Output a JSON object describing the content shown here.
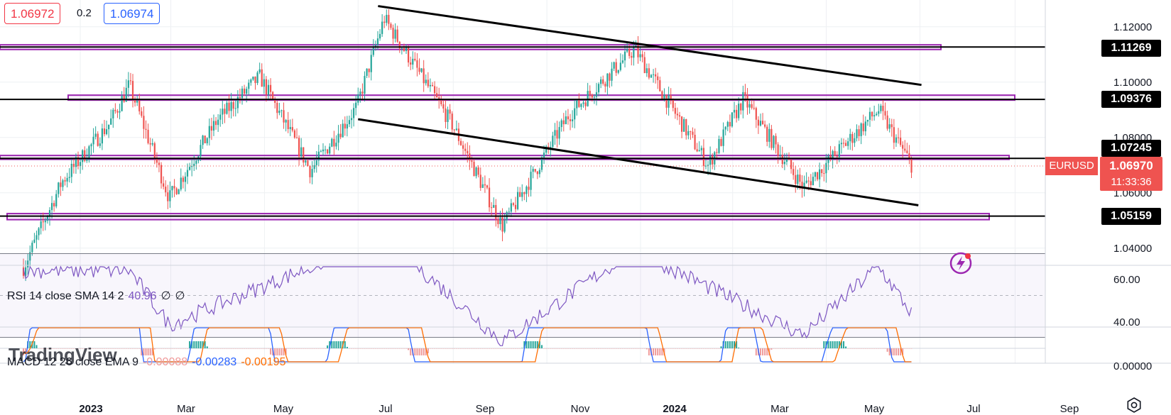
{
  "header": {
    "sell_price": "1.06972",
    "spread": "0.2",
    "buy_price": "1.06974"
  },
  "symbol": "EURUSD",
  "last_price": "1.06970",
  "countdown": "11:33:36",
  "watermark": "TradingView",
  "icons": [
    "alert-icon",
    "settings-icon"
  ],
  "colors": {
    "bull": "#26a69a",
    "bear": "#ef5350",
    "zone": "#9c27b0",
    "rsi": "#7e57c2",
    "macd": "#2962ff",
    "signal": "#ff6d00"
  },
  "rsi_legend": {
    "label": "RSI 14 close SMA 14 2",
    "value": "40.96",
    "extra1": "∅",
    "extra2": "∅"
  },
  "macd_legend": {
    "label": "MACD 12 26 close EMA 9",
    "hist": "-0.00088",
    "macd": "-0.00283",
    "signal": "-0.00195"
  },
  "chart_data": {
    "type": "candlestick",
    "price_axis_ticks": [
      "1.12000",
      "1.10000",
      "1.08000",
      "1.06000",
      "1.04000"
    ],
    "rsi_axis_ticks": [
      "60.00",
      "40.00"
    ],
    "macd_axis_ticks": [
      "0.00000"
    ],
    "x_labels": [
      "2023",
      "Mar",
      "May",
      "Jul",
      "Sep",
      "Nov",
      "2024",
      "Mar",
      "May",
      "Jul",
      "Sep"
    ],
    "horizontal_levels": [
      {
        "label": "1.11269",
        "value": 1.11269
      },
      {
        "label": "1.09376",
        "value": 1.09376
      },
      {
        "label": "1.07245",
        "value": 1.07245
      },
      {
        "label": "1.05159",
        "value": 1.05159
      }
    ],
    "trendlines": [
      {
        "from": {
          "date": "2023-07-14",
          "value": 1.1275
        },
        "to": {
          "date": "2024-07-02",
          "value": 1.099
        }
      },
      {
        "from": {
          "date": "2023-07-01",
          "value": 1.0866
        },
        "to": {
          "date": "2024-06-30",
          "value": 1.0555
        }
      }
    ],
    "ohlc_keypoints": [
      {
        "date": "2022-11-25",
        "close": 1.033
      },
      {
        "date": "2022-12-20",
        "close": 1.064
      },
      {
        "date": "2023-01-20",
        "close": 1.085
      },
      {
        "date": "2023-02-02",
        "close": 1.099
      },
      {
        "date": "2023-02-28",
        "close": 1.058
      },
      {
        "date": "2023-03-31",
        "close": 1.086
      },
      {
        "date": "2023-04-28",
        "close": 1.102
      },
      {
        "date": "2023-05-31",
        "close": 1.068
      },
      {
        "date": "2023-06-30",
        "close": 1.091
      },
      {
        "date": "2023-07-18",
        "close": 1.123
      },
      {
        "date": "2023-08-31",
        "close": 1.085
      },
      {
        "date": "2023-10-03",
        "close": 1.048
      },
      {
        "date": "2023-11-15",
        "close": 1.088
      },
      {
        "date": "2023-12-28",
        "close": 1.112
      },
      {
        "date": "2024-02-14",
        "close": 1.07
      },
      {
        "date": "2024-03-08",
        "close": 1.094
      },
      {
        "date": "2024-04-16",
        "close": 1.062
      },
      {
        "date": "2024-06-04",
        "close": 1.09
      },
      {
        "date": "2024-06-26",
        "close": 1.0697
      }
    ],
    "rsi_keypoints": [
      {
        "date": "2023-02-02",
        "value": 62
      },
      {
        "date": "2023-02-28",
        "value": 36
      },
      {
        "date": "2023-07-18",
        "value": 78
      },
      {
        "date": "2023-10-03",
        "value": 28
      },
      {
        "date": "2023-12-28",
        "value": 72
      },
      {
        "date": "2024-04-16",
        "value": 31
      },
      {
        "date": "2024-06-04",
        "value": 64
      },
      {
        "date": "2024-06-26",
        "value": 40.96
      }
    ]
  }
}
